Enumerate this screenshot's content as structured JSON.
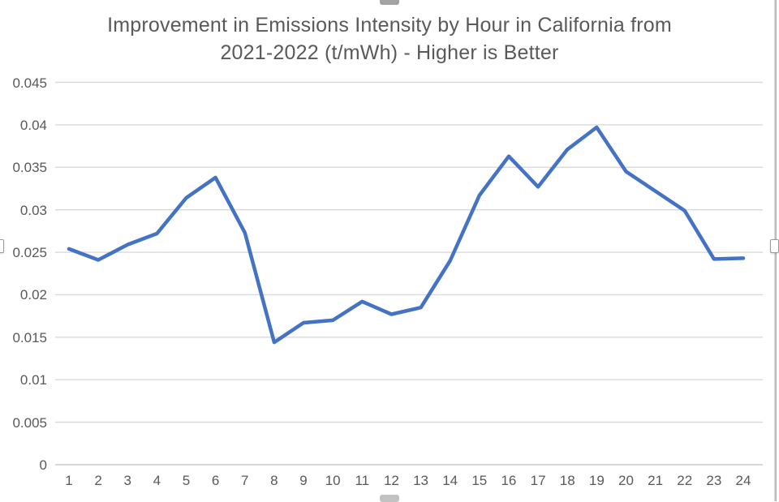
{
  "chart_data": {
    "type": "line",
    "title": "Improvement in Emissions Intensity by Hour in California from 2021-2022 (t/mWh) - Higher is Better",
    "title_lines": [
      "Improvement in Emissions Intensity by Hour in California from",
      "2021-2022 (t/mWh) - Higher is Better"
    ],
    "xlabel": "",
    "ylabel": "",
    "categories": [
      "1",
      "2",
      "3",
      "4",
      "5",
      "6",
      "7",
      "8",
      "9",
      "10",
      "11",
      "12",
      "13",
      "14",
      "15",
      "16",
      "17",
      "18",
      "19",
      "20",
      "21",
      "22",
      "23",
      "24"
    ],
    "values": [
      0.0254,
      0.0241,
      0.0259,
      0.0272,
      0.0314,
      0.0338,
      0.0273,
      0.0144,
      0.0167,
      0.017,
      0.0192,
      0.0177,
      0.0185,
      0.024,
      0.0317,
      0.0363,
      0.0327,
      0.0371,
      0.0397,
      0.0345,
      0.0322,
      0.0299,
      0.0242,
      0.0243
    ],
    "ylim": [
      0,
      0.045
    ],
    "ytick_step": 0.005,
    "ytick_labels": [
      "0",
      "0.005",
      "0.01",
      "0.015",
      "0.02",
      "0.025",
      "0.03",
      "0.035",
      "0.04",
      "0.045"
    ],
    "grid": true,
    "legend": "none",
    "line_color": "#4472C4",
    "gridline_color": "#D9D9D9",
    "axis_line_color": "#C9C9C9",
    "text_color": "#595959"
  }
}
